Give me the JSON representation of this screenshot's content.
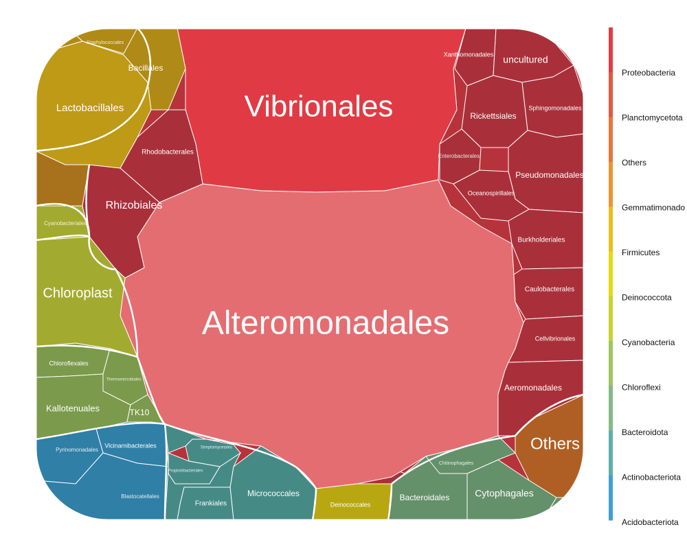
{
  "chart_data": {
    "type": "voronoi-treemap",
    "legend": {
      "placement": "right",
      "entries": [
        {
          "name": "Proteobacteria",
          "color": "#E03B45"
        },
        {
          "name": "Planctomycetota",
          "color": "#E3583F"
        },
        {
          "name": "Others",
          "color": "#E6763A"
        },
        {
          "name": "Gemmatimonado",
          "color": "#EA9530"
        },
        {
          "name": "Firmicutes",
          "color": "#E8BE1A"
        },
        {
          "name": "Deinococcota",
          "color": "#E8DA0E"
        },
        {
          "name": "Cyanobacteria",
          "color": "#C8D231"
        },
        {
          "name": "Chloroflexi",
          "color": "#9FC55C"
        },
        {
          "name": "Bacteroidota",
          "color": "#84BB85"
        },
        {
          "name": "Actinobacteriota",
          "color": "#5DAFAC"
        },
        {
          "name": "Acidobacteriota",
          "color": "#3FA0D2"
        }
      ]
    },
    "cells": [
      {
        "label": "Vibrionales",
        "phylum": "Proteobacteria",
        "color": "#E03B45"
      },
      {
        "label": "Alteromonadales",
        "phylum": "Proteobacteria",
        "color": "#E46D71"
      },
      {
        "label": "Xanthomonadales",
        "phylum": "Proteobacteria",
        "color": "#A9303A"
      },
      {
        "label": "uncultured",
        "phylum": "Proteobacteria",
        "color": "#A9303A"
      },
      {
        "label": "Rickettsiales",
        "phylum": "Proteobacteria",
        "color": "#A9303A"
      },
      {
        "label": "Sphingomonadales",
        "phylum": "Proteobacteria",
        "color": "#A9303A"
      },
      {
        "label": "Enterobacterales",
        "phylum": "Proteobacteria",
        "color": "#A9303A"
      },
      {
        "label": "Pseudomonadales",
        "phylum": "Proteobacteria",
        "color": "#A9303A"
      },
      {
        "label": "Oceanospirillales",
        "phylum": "Proteobacteria",
        "color": "#A9303A"
      },
      {
        "label": "Burkholderiales",
        "phylum": "Proteobacteria",
        "color": "#A9303A"
      },
      {
        "label": "Caulobacterales",
        "phylum": "Proteobacteria",
        "color": "#A9303A"
      },
      {
        "label": "Cellvibrionales",
        "phylum": "Proteobacteria",
        "color": "#A9303A"
      },
      {
        "label": "Aeromonadales",
        "phylum": "Proteobacteria",
        "color": "#A9303A"
      },
      {
        "label": "Rhodobacterales",
        "phylum": "Proteobacteria",
        "color": "#A9303A"
      },
      {
        "label": "Rhizobiales",
        "phylum": "Proteobacteria",
        "color": "#A9303A"
      },
      {
        "label": "Others",
        "phylum": "Others",
        "color": "#B05F24"
      },
      {
        "label": "Lactobacillales",
        "phylum": "Firmicutes",
        "color": "#BE9A16"
      },
      {
        "label": "Bacillales",
        "phylum": "Firmicutes",
        "color": "#B08A16"
      },
      {
        "label": "Staphylococcales",
        "phylum": "Firmicutes",
        "color": "#B08A16"
      },
      {
        "label": "Chloroplast",
        "phylum": "Cyanobacteria",
        "color": "#A3AA30"
      },
      {
        "label": "Cyanobacteriales",
        "phylum": "Cyanobacteria",
        "color": "#A3AA30"
      },
      {
        "label": "Chloroflexales",
        "phylum": "Chloroflexi",
        "color": "#7C9A4B"
      },
      {
        "label": "Thermomicrobiales",
        "phylum": "Chloroflexi",
        "color": "#7C9A4B"
      },
      {
        "label": "Kallotenuales",
        "phylum": "Chloroflexi",
        "color": "#7C9A4B"
      },
      {
        "label": "TK10",
        "phylum": "Chloroflexi",
        "color": "#7C9A4B"
      },
      {
        "label": "Vicinamibacterales",
        "phylum": "Acidobacteriota",
        "color": "#2F7FA7"
      },
      {
        "label": "Pyrinomonadales",
        "phylum": "Acidobacteriota",
        "color": "#2F7FA7"
      },
      {
        "label": "Blastocatellales",
        "phylum": "Acidobacteriota",
        "color": "#2F7FA7"
      },
      {
        "label": "Micrococcales",
        "phylum": "Actinobacteriota",
        "color": "#468A86"
      },
      {
        "label": "Frankiales",
        "phylum": "Actinobacteriota",
        "color": "#468A86"
      },
      {
        "label": "Streptomycetales",
        "phylum": "Actinobacteriota",
        "color": "#468A86"
      },
      {
        "label": "Propionibacteriales",
        "phylum": "Actinobacteriota",
        "color": "#468A86"
      },
      {
        "label": "Deinococcales",
        "phylum": "Deinococcota",
        "color": "#B8A711"
      },
      {
        "label": "Bacteroidales",
        "phylum": "Bacteroidota",
        "color": "#64906A"
      },
      {
        "label": "Cytophagales",
        "phylum": "Bacteroidota",
        "color": "#64906A"
      },
      {
        "label": "Chitinophagales",
        "phylum": "Bacteroidota",
        "color": "#64906A"
      }
    ]
  }
}
